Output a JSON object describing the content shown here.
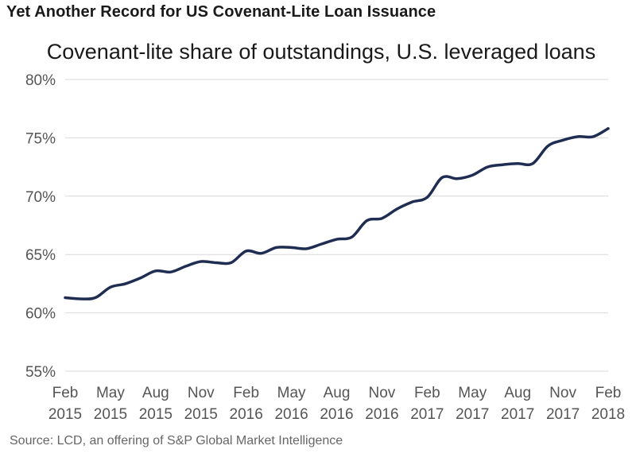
{
  "headline": "Yet Another Record for US Covenant-Lite Loan Issuance",
  "source": "Source: LCD, an offering of S&P Global Market Intelligence",
  "chart_data": {
    "type": "line",
    "title": "Covenant-lite share of outstandings, U.S. leveraged loans",
    "xlabel": "",
    "ylabel": "",
    "ylim": [
      55,
      80
    ],
    "y_ticks": [
      "55%",
      "60%",
      "65%",
      "70%",
      "75%",
      "80%"
    ],
    "y_tick_values": [
      55,
      60,
      65,
      70,
      75,
      80
    ],
    "x_ticks": [
      {
        "month": "Feb",
        "year": "2015"
      },
      {
        "month": "May",
        "year": "2015"
      },
      {
        "month": "Aug",
        "year": "2015"
      },
      {
        "month": "Nov",
        "year": "2015"
      },
      {
        "month": "Feb",
        "year": "2016"
      },
      {
        "month": "May",
        "year": "2016"
      },
      {
        "month": "Aug",
        "year": "2016"
      },
      {
        "month": "Nov",
        "year": "2016"
      },
      {
        "month": "Feb",
        "year": "2017"
      },
      {
        "month": "May",
        "year": "2017"
      },
      {
        "month": "Aug",
        "year": "2017"
      },
      {
        "month": "Nov",
        "year": "2017"
      },
      {
        "month": "Feb",
        "year": "2018"
      }
    ],
    "grid": true,
    "line_color": "#1f2d52",
    "series": [
      {
        "x": [
          "2015-02",
          "2015-03",
          "2015-04",
          "2015-05",
          "2015-06",
          "2015-07",
          "2015-08",
          "2015-09",
          "2015-10",
          "2015-11",
          "2015-12",
          "2016-01",
          "2016-02",
          "2016-03",
          "2016-04",
          "2016-05",
          "2016-06",
          "2016-07",
          "2016-08",
          "2016-09",
          "2016-10",
          "2016-11",
          "2016-12",
          "2017-01",
          "2017-02",
          "2017-03",
          "2017-04",
          "2017-05",
          "2017-06",
          "2017-07",
          "2017-08",
          "2017-09",
          "2017-10",
          "2017-11",
          "2017-12",
          "2018-01",
          "2018-02"
        ],
        "values": [
          61.3,
          61.2,
          61.3,
          62.2,
          62.5,
          63.0,
          63.6,
          63.5,
          64.0,
          64.4,
          64.3,
          64.3,
          65.3,
          65.1,
          65.6,
          65.6,
          65.5,
          65.9,
          66.3,
          66.5,
          67.9,
          68.1,
          68.9,
          69.5,
          69.9,
          71.6,
          71.5,
          71.8,
          72.5,
          72.7,
          72.8,
          72.8,
          74.3,
          74.8,
          75.1,
          75.1,
          75.8
        ]
      }
    ]
  }
}
